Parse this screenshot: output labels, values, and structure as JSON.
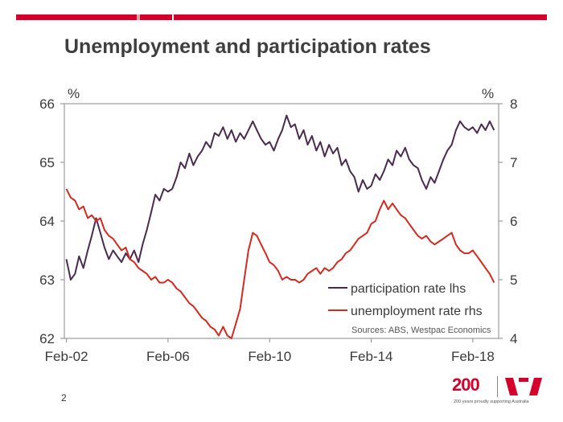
{
  "slide": {
    "title": "Unemployment and participation rates",
    "page_number": "2"
  },
  "colors": {
    "participation": "#4b2a4f",
    "unemployment": "#d42a20",
    "brand_red": "#d5002b"
  },
  "logo": {
    "text": "200",
    "tagline": "200 years proudly supporting Australia"
  },
  "chart_data": {
    "type": "line",
    "x_tick_labels": [
      "Feb-02",
      "Feb-06",
      "Feb-10",
      "Feb-14",
      "Feb-18"
    ],
    "x_tick_years": [
      2002.083,
      2006.083,
      2010.083,
      2014.083,
      2018.083
    ],
    "x_range": [
      2002.0,
      2019.1
    ],
    "left_axis": {
      "unit": "%",
      "range": [
        62,
        66
      ],
      "ticks": [
        62,
        63,
        64,
        65,
        66
      ]
    },
    "right_axis": {
      "unit": "%",
      "range": [
        4,
        8
      ],
      "ticks": [
        4,
        5,
        6,
        7,
        8
      ]
    },
    "legend": [
      "participation rate lhs",
      "unemployment rate rhs"
    ],
    "source_note": "Sources: ABS, Westpac Economics",
    "series": [
      {
        "name": "participation rate lhs",
        "axis": "left",
        "points": [
          [
            2002.08,
            63.35
          ],
          [
            2002.25,
            63.0
          ],
          [
            2002.42,
            63.1
          ],
          [
            2002.58,
            63.4
          ],
          [
            2002.75,
            63.2
          ],
          [
            2002.92,
            63.5
          ],
          [
            2003.08,
            63.75
          ],
          [
            2003.25,
            64.05
          ],
          [
            2003.42,
            63.8
          ],
          [
            2003.58,
            63.55
          ],
          [
            2003.75,
            63.35
          ],
          [
            2003.92,
            63.5
          ],
          [
            2004.08,
            63.4
          ],
          [
            2004.25,
            63.3
          ],
          [
            2004.42,
            63.45
          ],
          [
            2004.58,
            63.35
          ],
          [
            2004.75,
            63.5
          ],
          [
            2004.92,
            63.3
          ],
          [
            2005.08,
            63.6
          ],
          [
            2005.25,
            63.85
          ],
          [
            2005.42,
            64.15
          ],
          [
            2005.58,
            64.45
          ],
          [
            2005.75,
            64.35
          ],
          [
            2005.92,
            64.55
          ],
          [
            2006.08,
            64.5
          ],
          [
            2006.25,
            64.55
          ],
          [
            2006.42,
            64.75
          ],
          [
            2006.58,
            65.0
          ],
          [
            2006.75,
            64.9
          ],
          [
            2006.92,
            65.15
          ],
          [
            2007.08,
            64.95
          ],
          [
            2007.25,
            65.1
          ],
          [
            2007.42,
            65.2
          ],
          [
            2007.58,
            65.35
          ],
          [
            2007.75,
            65.25
          ],
          [
            2007.92,
            65.5
          ],
          [
            2008.08,
            65.45
          ],
          [
            2008.25,
            65.6
          ],
          [
            2008.42,
            65.4
          ],
          [
            2008.58,
            65.55
          ],
          [
            2008.75,
            65.35
          ],
          [
            2008.92,
            65.5
          ],
          [
            2009.08,
            65.4
          ],
          [
            2009.25,
            65.55
          ],
          [
            2009.42,
            65.7
          ],
          [
            2009.58,
            65.55
          ],
          [
            2009.75,
            65.4
          ],
          [
            2009.92,
            65.3
          ],
          [
            2010.08,
            65.35
          ],
          [
            2010.25,
            65.2
          ],
          [
            2010.42,
            65.4
          ],
          [
            2010.58,
            65.55
          ],
          [
            2010.75,
            65.8
          ],
          [
            2010.92,
            65.6
          ],
          [
            2011.08,
            65.65
          ],
          [
            2011.25,
            65.4
          ],
          [
            2011.42,
            65.55
          ],
          [
            2011.58,
            65.3
          ],
          [
            2011.75,
            65.45
          ],
          [
            2011.92,
            65.2
          ],
          [
            2012.08,
            65.35
          ],
          [
            2012.25,
            65.1
          ],
          [
            2012.42,
            65.3
          ],
          [
            2012.58,
            65.15
          ],
          [
            2012.75,
            65.25
          ],
          [
            2012.92,
            64.95
          ],
          [
            2013.08,
            65.05
          ],
          [
            2013.25,
            64.85
          ],
          [
            2013.42,
            64.75
          ],
          [
            2013.58,
            64.5
          ],
          [
            2013.75,
            64.7
          ],
          [
            2013.92,
            64.55
          ],
          [
            2014.08,
            64.6
          ],
          [
            2014.25,
            64.8
          ],
          [
            2014.42,
            64.7
          ],
          [
            2014.58,
            64.85
          ],
          [
            2014.75,
            65.05
          ],
          [
            2014.92,
            64.95
          ],
          [
            2015.08,
            65.2
          ],
          [
            2015.25,
            65.1
          ],
          [
            2015.42,
            65.25
          ],
          [
            2015.58,
            65.05
          ],
          [
            2015.75,
            64.95
          ],
          [
            2015.92,
            64.9
          ],
          [
            2016.08,
            64.7
          ],
          [
            2016.25,
            64.55
          ],
          [
            2016.42,
            64.75
          ],
          [
            2016.58,
            64.65
          ],
          [
            2016.75,
            64.85
          ],
          [
            2016.92,
            65.05
          ],
          [
            2017.08,
            65.2
          ],
          [
            2017.25,
            65.3
          ],
          [
            2017.42,
            65.55
          ],
          [
            2017.58,
            65.7
          ],
          [
            2017.75,
            65.6
          ],
          [
            2017.92,
            65.55
          ],
          [
            2018.08,
            65.6
          ],
          [
            2018.25,
            65.5
          ],
          [
            2018.42,
            65.65
          ],
          [
            2018.58,
            65.55
          ],
          [
            2018.75,
            65.7
          ],
          [
            2018.92,
            65.55
          ]
        ]
      },
      {
        "name": "unemployment rate rhs",
        "axis": "right",
        "points": [
          [
            2002.08,
            6.55
          ],
          [
            2002.25,
            6.4
          ],
          [
            2002.42,
            6.35
          ],
          [
            2002.58,
            6.2
          ],
          [
            2002.75,
            6.25
          ],
          [
            2002.92,
            6.05
          ],
          [
            2003.08,
            6.1
          ],
          [
            2003.25,
            6.0
          ],
          [
            2003.42,
            6.05
          ],
          [
            2003.58,
            5.85
          ],
          [
            2003.75,
            5.75
          ],
          [
            2003.92,
            5.7
          ],
          [
            2004.08,
            5.6
          ],
          [
            2004.25,
            5.5
          ],
          [
            2004.42,
            5.55
          ],
          [
            2004.58,
            5.35
          ],
          [
            2004.75,
            5.3
          ],
          [
            2004.92,
            5.2
          ],
          [
            2005.08,
            5.15
          ],
          [
            2005.25,
            5.1
          ],
          [
            2005.42,
            5.0
          ],
          [
            2005.58,
            5.05
          ],
          [
            2005.75,
            4.95
          ],
          [
            2005.92,
            4.95
          ],
          [
            2006.08,
            5.0
          ],
          [
            2006.25,
            4.95
          ],
          [
            2006.42,
            4.85
          ],
          [
            2006.58,
            4.8
          ],
          [
            2006.75,
            4.7
          ],
          [
            2006.92,
            4.6
          ],
          [
            2007.08,
            4.55
          ],
          [
            2007.25,
            4.45
          ],
          [
            2007.42,
            4.35
          ],
          [
            2007.58,
            4.3
          ],
          [
            2007.75,
            4.2
          ],
          [
            2007.92,
            4.15
          ],
          [
            2008.08,
            4.05
          ],
          [
            2008.25,
            4.2
          ],
          [
            2008.42,
            4.05
          ],
          [
            2008.58,
            4.0
          ],
          [
            2008.75,
            4.25
          ],
          [
            2008.92,
            4.5
          ],
          [
            2009.08,
            5.0
          ],
          [
            2009.25,
            5.5
          ],
          [
            2009.42,
            5.8
          ],
          [
            2009.58,
            5.75
          ],
          [
            2009.75,
            5.6
          ],
          [
            2009.92,
            5.45
          ],
          [
            2010.08,
            5.3
          ],
          [
            2010.25,
            5.25
          ],
          [
            2010.42,
            5.15
          ],
          [
            2010.58,
            5.0
          ],
          [
            2010.75,
            5.05
          ],
          [
            2010.92,
            5.0
          ],
          [
            2011.08,
            5.0
          ],
          [
            2011.25,
            4.95
          ],
          [
            2011.42,
            5.0
          ],
          [
            2011.58,
            5.1
          ],
          [
            2011.75,
            5.15
          ],
          [
            2011.92,
            5.2
          ],
          [
            2012.08,
            5.1
          ],
          [
            2012.25,
            5.2
          ],
          [
            2012.42,
            5.15
          ],
          [
            2012.58,
            5.2
          ],
          [
            2012.75,
            5.3
          ],
          [
            2012.92,
            5.35
          ],
          [
            2013.08,
            5.45
          ],
          [
            2013.25,
            5.5
          ],
          [
            2013.42,
            5.6
          ],
          [
            2013.58,
            5.7
          ],
          [
            2013.75,
            5.75
          ],
          [
            2013.92,
            5.8
          ],
          [
            2014.08,
            5.95
          ],
          [
            2014.25,
            6.0
          ],
          [
            2014.42,
            6.2
          ],
          [
            2014.58,
            6.35
          ],
          [
            2014.75,
            6.2
          ],
          [
            2014.92,
            6.3
          ],
          [
            2015.08,
            6.2
          ],
          [
            2015.25,
            6.1
          ],
          [
            2015.42,
            6.05
          ],
          [
            2015.58,
            5.95
          ],
          [
            2015.75,
            5.85
          ],
          [
            2015.92,
            5.75
          ],
          [
            2016.08,
            5.7
          ],
          [
            2016.25,
            5.75
          ],
          [
            2016.42,
            5.65
          ],
          [
            2016.58,
            5.6
          ],
          [
            2016.75,
            5.65
          ],
          [
            2016.92,
            5.7
          ],
          [
            2017.08,
            5.75
          ],
          [
            2017.25,
            5.8
          ],
          [
            2017.42,
            5.6
          ],
          [
            2017.58,
            5.5
          ],
          [
            2017.75,
            5.45
          ],
          [
            2017.92,
            5.45
          ],
          [
            2018.08,
            5.5
          ],
          [
            2018.25,
            5.4
          ],
          [
            2018.42,
            5.3
          ],
          [
            2018.58,
            5.2
          ],
          [
            2018.75,
            5.1
          ],
          [
            2018.92,
            4.95
          ]
        ]
      }
    ]
  }
}
